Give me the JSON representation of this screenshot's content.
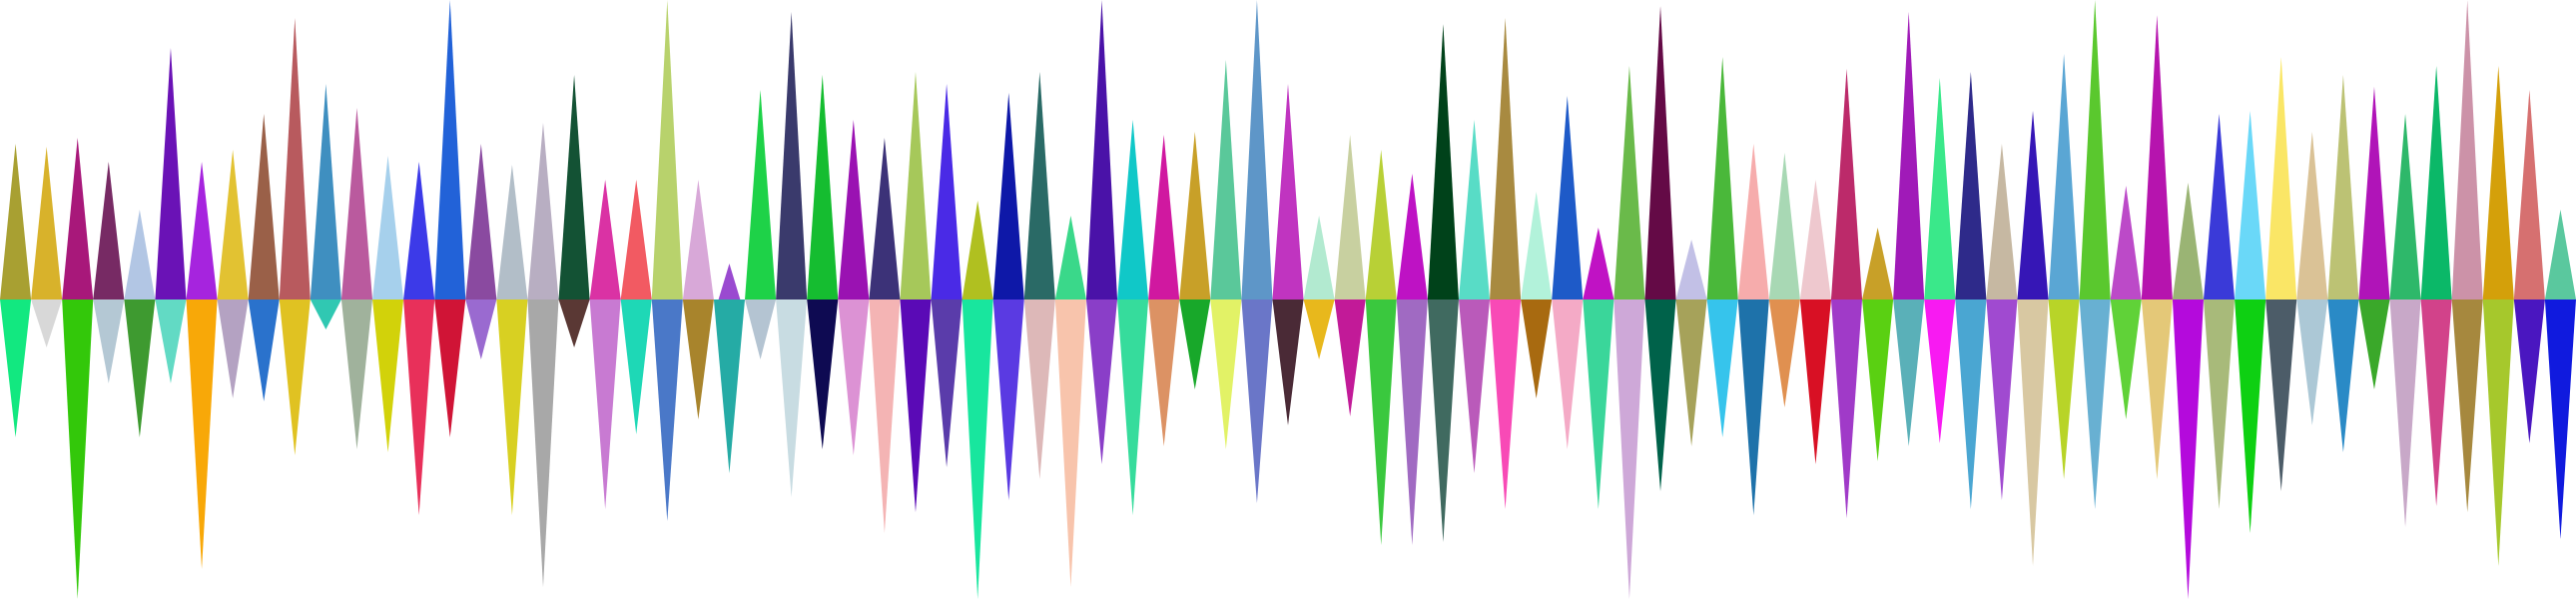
{
  "artwork": {
    "subject": "soundwave-triangles",
    "spikes": [
      {
        "color": "#a8a032",
        "up": 0.52,
        "down": 0.46,
        "narrow": false
      },
      {
        "color": "#d8b22b",
        "up": 0.51,
        "down": 0.16,
        "narrow": false
      },
      {
        "color": "#a8187a",
        "up": 0.54,
        "down": 1.0,
        "narrow": false
      },
      {
        "color": "#772a64",
        "up": 0.46,
        "down": 0.28,
        "narrow": false
      },
      {
        "color": "#b2c6e4",
        "up": 0.3,
        "down": 0.46,
        "narrow": false
      },
      {
        "color": "#6a12b6",
        "up": 0.84,
        "down": 0.28,
        "narrow": false
      },
      {
        "color": "#a624de",
        "up": 0.46,
        "down": 0.9,
        "narrow": false
      },
      {
        "color": "#e2c232",
        "up": 0.5,
        "down": 0.33,
        "narrow": false
      },
      {
        "color": "#9a6048",
        "up": 0.62,
        "down": 0.34,
        "narrow": false
      },
      {
        "color": "#b85a5e",
        "up": 0.94,
        "down": 0.52,
        "narrow": false
      },
      {
        "color": "#3f8fc0",
        "up": 0.72,
        "down": 0.1,
        "narrow": false
      },
      {
        "color": "#ba5a9e",
        "up": 0.64,
        "down": 0.5,
        "narrow": false
      },
      {
        "color": "#a6d0ec",
        "up": 0.48,
        "down": 0.51,
        "narrow": false
      },
      {
        "color": "#3c3ae8",
        "up": 0.46,
        "down": 0.72,
        "narrow": false
      },
      {
        "color": "#2262d8",
        "up": 1.0,
        "down": 0.46,
        "narrow": false
      },
      {
        "color": "#8a4aa0",
        "up": 0.52,
        "down": 0.2,
        "narrow": false
      },
      {
        "color": "#b2bec8",
        "up": 0.45,
        "down": 0.72,
        "narrow": false
      },
      {
        "color": "#b8aec2",
        "up": 0.59,
        "down": 0.96,
        "narrow": false
      },
      {
        "color": "#135234",
        "up": 0.75,
        "down": 0.16,
        "narrow": false
      },
      {
        "color": "#da32a4",
        "up": 0.4,
        "down": 0.7,
        "narrow": false
      },
      {
        "color": "#f25a62",
        "up": 0.4,
        "down": 0.45,
        "narrow": false
      },
      {
        "color": "#b8d26c",
        "up": 1.0,
        "down": 0.74,
        "narrow": false
      },
      {
        "color": "#d8a8d8",
        "up": 0.4,
        "down": 0.4,
        "narrow": false
      },
      {
        "color": "#9a4ad0",
        "up": 0.12,
        "down": 0.58,
        "narrow": true
      },
      {
        "color": "#1ed248",
        "up": 0.7,
        "down": 0.2,
        "narrow": false
      },
      {
        "color": "#3a3a6c",
        "up": 0.96,
        "down": 0.66,
        "narrow": false
      },
      {
        "color": "#15bd30",
        "up": 0.75,
        "down": 0.5,
        "narrow": false
      },
      {
        "color": "#9a12b2",
        "up": 0.6,
        "down": 0.52,
        "narrow": false
      },
      {
        "color": "#3c3278",
        "up": 0.54,
        "down": 0.78,
        "narrow": false
      },
      {
        "color": "#a6c85a",
        "up": 0.76,
        "down": 0.71,
        "narrow": false
      },
      {
        "color": "#4a2ae6",
        "up": 0.72,
        "down": 0.56,
        "narrow": false
      },
      {
        "color": "#b0c020",
        "up": 0.33,
        "down": 1.0,
        "narrow": false
      },
      {
        "color": "#0e18a8",
        "up": 0.69,
        "down": 0.67,
        "narrow": false
      },
      {
        "color": "#2a6a66",
        "up": 0.76,
        "down": 0.6,
        "narrow": false
      },
      {
        "color": "#3ad88a",
        "up": 0.28,
        "down": 0.96,
        "narrow": false
      },
      {
        "color": "#4a12a8",
        "up": 1.0,
        "down": 0.55,
        "narrow": false
      },
      {
        "color": "#10c8c8",
        "up": 0.6,
        "down": 0.72,
        "narrow": false
      },
      {
        "color": "#d018a0",
        "up": 0.55,
        "down": 0.49,
        "narrow": false
      },
      {
        "color": "#c8a028",
        "up": 0.56,
        "down": 0.3,
        "narrow": false
      },
      {
        "color": "#5ac89a",
        "up": 0.8,
        "down": 0.5,
        "narrow": false
      },
      {
        "color": "#5e96c8",
        "up": 1.0,
        "down": 0.68,
        "narrow": false
      },
      {
        "color": "#c034c0",
        "up": 0.72,
        "down": 0.42,
        "narrow": false
      },
      {
        "color": "#b2ead0",
        "up": 0.28,
        "down": 0.2,
        "narrow": false
      },
      {
        "color": "#c8d0a0",
        "up": 0.55,
        "down": 0.39,
        "narrow": false
      },
      {
        "color": "#b8d036",
        "up": 0.5,
        "down": 0.82,
        "narrow": false
      },
      {
        "color": "#be12c4",
        "up": 0.42,
        "down": 0.82,
        "narrow": false
      },
      {
        "color": "#00421a",
        "up": 0.92,
        "down": 0.81,
        "narrow": false
      },
      {
        "color": "#58dcc6",
        "up": 0.6,
        "down": 0.58,
        "narrow": false
      },
      {
        "color": "#a88a40",
        "up": 0.94,
        "down": 0.7,
        "narrow": false
      },
      {
        "color": "#b2f2da",
        "up": 0.36,
        "down": 0.33,
        "narrow": false
      },
      {
        "color": "#1e5ac8",
        "up": 0.68,
        "down": 0.5,
        "narrow": false
      },
      {
        "color": "#c012c4",
        "up": 0.24,
        "down": 0.7,
        "narrow": false
      },
      {
        "color": "#6aba4a",
        "up": 0.78,
        "down": 1.0,
        "narrow": false
      },
      {
        "color": "#640a46",
        "up": 0.98,
        "down": 0.64,
        "narrow": false
      },
      {
        "color": "#c2c0e6",
        "up": 0.2,
        "down": 0.49,
        "narrow": false
      },
      {
        "color": "#4ab83a",
        "up": 0.81,
        "down": 0.46,
        "narrow": false
      },
      {
        "color": "#f6acac",
        "up": 0.52,
        "down": 0.72,
        "narrow": false
      },
      {
        "color": "#a8d8b4",
        "up": 0.49,
        "down": 0.36,
        "narrow": false
      },
      {
        "color": "#eec8ce",
        "up": 0.4,
        "down": 0.55,
        "narrow": false
      },
      {
        "color": "#bc2a6a",
        "up": 0.77,
        "down": 0.73,
        "narrow": false
      },
      {
        "color": "#c8a028",
        "up": 0.24,
        "down": 0.54,
        "narrow": false
      },
      {
        "color": "#a01ab8",
        "up": 0.96,
        "down": 0.49,
        "narrow": false
      },
      {
        "color": "#3ae88a",
        "up": 0.74,
        "down": 0.48,
        "narrow": false
      },
      {
        "color": "#2e2a8a",
        "up": 0.76,
        "down": 0.7,
        "narrow": false
      },
      {
        "color": "#c6b8a2",
        "up": 0.52,
        "down": 0.67,
        "narrow": false
      },
      {
        "color": "#3616b6",
        "up": 0.63,
        "down": 0.89,
        "narrow": false
      },
      {
        "color": "#5aa6d4",
        "up": 0.82,
        "down": 0.6,
        "narrow": false
      },
      {
        "color": "#5ac82e",
        "up": 1.0,
        "down": 0.7,
        "narrow": false
      },
      {
        "color": "#bc4ac8",
        "up": 0.38,
        "down": 0.4,
        "narrow": false
      },
      {
        "color": "#b614ae",
        "up": 0.95,
        "down": 0.6,
        "narrow": false
      },
      {
        "color": "#9ab474",
        "up": 0.39,
        "down": 1.0,
        "narrow": false
      },
      {
        "color": "#3a3ad8",
        "up": 0.62,
        "down": 0.7,
        "narrow": false
      },
      {
        "color": "#6ad8f8",
        "up": 0.63,
        "down": 0.78,
        "narrow": false
      },
      {
        "color": "#fae666",
        "up": 0.81,
        "down": 0.64,
        "narrow": false
      },
      {
        "color": "#dac296",
        "up": 0.56,
        "down": 0.42,
        "narrow": false
      },
      {
        "color": "#bcc274",
        "up": 0.75,
        "down": 0.51,
        "narrow": false
      },
      {
        "color": "#b014b8",
        "up": 0.71,
        "down": 0.3,
        "narrow": false
      },
      {
        "color": "#2eb86a",
        "up": 0.62,
        "down": 0.76,
        "narrow": false
      },
      {
        "color": "#0bb868",
        "up": 0.78,
        "down": 0.69,
        "narrow": false
      },
      {
        "color": "#cc92a8",
        "up": 1.0,
        "down": 0.71,
        "narrow": false
      },
      {
        "color": "#d4a00a",
        "up": 0.78,
        "down": 0.89,
        "narrow": false
      },
      {
        "color": "#d67070",
        "up": 0.7,
        "down": 0.48,
        "narrow": false
      },
      {
        "color": "#5ac89e",
        "up": 0.3,
        "down": 0.8,
        "narrow": false
      }
    ],
    "lower_colors": [
      "#12e880",
      "#d8d8d8",
      "#33c80a",
      "#b4c8d4",
      "#3e9a30",
      "#62dac4",
      "#f8a808",
      "#b4a2c2",
      "#2a72cc",
      "#e0c222",
      "#30c8b2",
      "#a0b29c",
      "#d2d20a",
      "#e8305a",
      "#d01436",
      "#9a6ad0",
      "#d8d022",
      "#a8a8a8",
      "#5a3834",
      "#c87ad2",
      "#1ed8b6",
      "#4a78c8",
      "#a8842c",
      "#25aba5",
      "#b4c4d2",
      "#c8dce2",
      "#0e0a52",
      "#dc92d4",
      "#f4b4b4",
      "#5a0ab6",
      "#5a3caa",
      "#18e69e",
      "#5a3ae2",
      "#ddb8b8",
      "#f8c4ac",
      "#8a3ec8",
      "#36dc9c",
      "#dc9264",
      "#18a82a",
      "#e2f266",
      "#6a76c8",
      "#4a2a36",
      "#e8b81c",
      "#c21a98",
      "#3ac83e",
      "#a06ac2",
      "#406a60",
      "#ba5aba",
      "#f84ab6",
      "#a86a10",
      "#f4aac6",
      "#3ad69a",
      "#cea8d8",
      "#00624a",
      "#a6a25a",
      "#36c4ec",
      "#1e72aa",
      "#e09050",
      "#d81024",
      "#a03ac8",
      "#5ad012",
      "#5ab0b8",
      "#f81af2",
      "#4aa6d2",
      "#a04ad0",
      "#d8c8a2",
      "#b8d428",
      "#68b0d2",
      "#60d238",
      "#e4c878",
      "#b40adc",
      "#a8ba7a",
      "#0ed012",
      "#4c5c68",
      "#acc8d6",
      "#2a8ac6",
      "#3aa82a",
      "#c8a8c8",
      "#d2428a",
      "#a6883e",
      "#a6c82c",
      "#4a16c0",
      "#101ade",
      "#d8dc40"
    ]
  }
}
